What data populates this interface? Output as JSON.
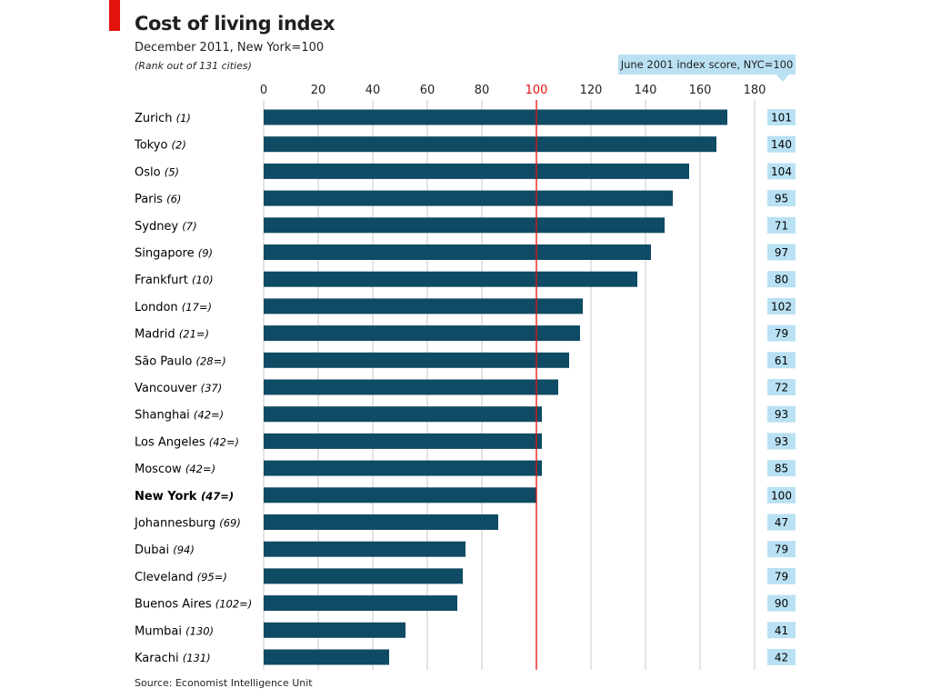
{
  "header": {
    "title": "Cost of living index",
    "subtitle": "December 2011, New York=100",
    "note": "(Rank out of 131 cities)",
    "right_column_label": "June 2001 index score, NYC=100",
    "source": "Source: Economist Intelligence Unit"
  },
  "colors": {
    "bar": "#0f4b64",
    "highlight_rule": "#e3120b",
    "label_box": "#b9e1f3",
    "accent_tab": "#e3120b"
  },
  "chart_data": {
    "type": "bar",
    "orientation": "horizontal",
    "title": "Cost of living index",
    "subtitle": "December 2011, New York=100",
    "xlim": [
      0,
      180
    ],
    "ticks": [
      0,
      20,
      40,
      60,
      80,
      100,
      120,
      140,
      160,
      180
    ],
    "reference_value": 100,
    "grid": true,
    "categories": [
      {
        "city": "Zurich",
        "rank": "(1)",
        "bold": false
      },
      {
        "city": "Tokyo",
        "rank": "(2)",
        "bold": false
      },
      {
        "city": "Oslo",
        "rank": "(5)",
        "bold": false
      },
      {
        "city": "Paris",
        "rank": "(6)",
        "bold": false
      },
      {
        "city": "Sydney",
        "rank": "(7)",
        "bold": false
      },
      {
        "city": "Singapore",
        "rank": "(9)",
        "bold": false
      },
      {
        "city": "Frankfurt",
        "rank": "(10)",
        "bold": false
      },
      {
        "city": "London",
        "rank": "(17=)",
        "bold": false
      },
      {
        "city": "Madrid",
        "rank": "(21=)",
        "bold": false
      },
      {
        "city": "São Paulo",
        "rank": "(28=)",
        "bold": false
      },
      {
        "city": "Vancouver",
        "rank": "(37)",
        "bold": false
      },
      {
        "city": "Shanghai",
        "rank": "(42=)",
        "bold": false
      },
      {
        "city": "Los Angeles",
        "rank": "(42=)",
        "bold": false
      },
      {
        "city": "Moscow",
        "rank": "(42=)",
        "bold": false
      },
      {
        "city": "New York",
        "rank": "(47=)",
        "bold": true
      },
      {
        "city": "Johannesburg",
        "rank": "(69)",
        "bold": false
      },
      {
        "city": "Dubai",
        "rank": "(94)",
        "bold": false
      },
      {
        "city": "Cleveland",
        "rank": "(95=)",
        "bold": false
      },
      {
        "city": "Buenos Aires",
        "rank": "(102=)",
        "bold": false
      },
      {
        "city": "Mumbai",
        "rank": "(130)",
        "bold": false
      },
      {
        "city": "Karachi",
        "rank": "(131)",
        "bold": false
      }
    ],
    "values": [
      170,
      166,
      156,
      150,
      147,
      142,
      137,
      117,
      116,
      112,
      108,
      102,
      102,
      102,
      100,
      86,
      74,
      73,
      71,
      52,
      46
    ],
    "june_2001_scores": [
      "101",
      "140",
      "104",
      "95",
      "71",
      "97",
      "80",
      "102",
      "79",
      "61",
      "72",
      "93",
      "93",
      "85",
      "100",
      "47",
      "79",
      "79",
      "90",
      "41",
      "42"
    ]
  }
}
